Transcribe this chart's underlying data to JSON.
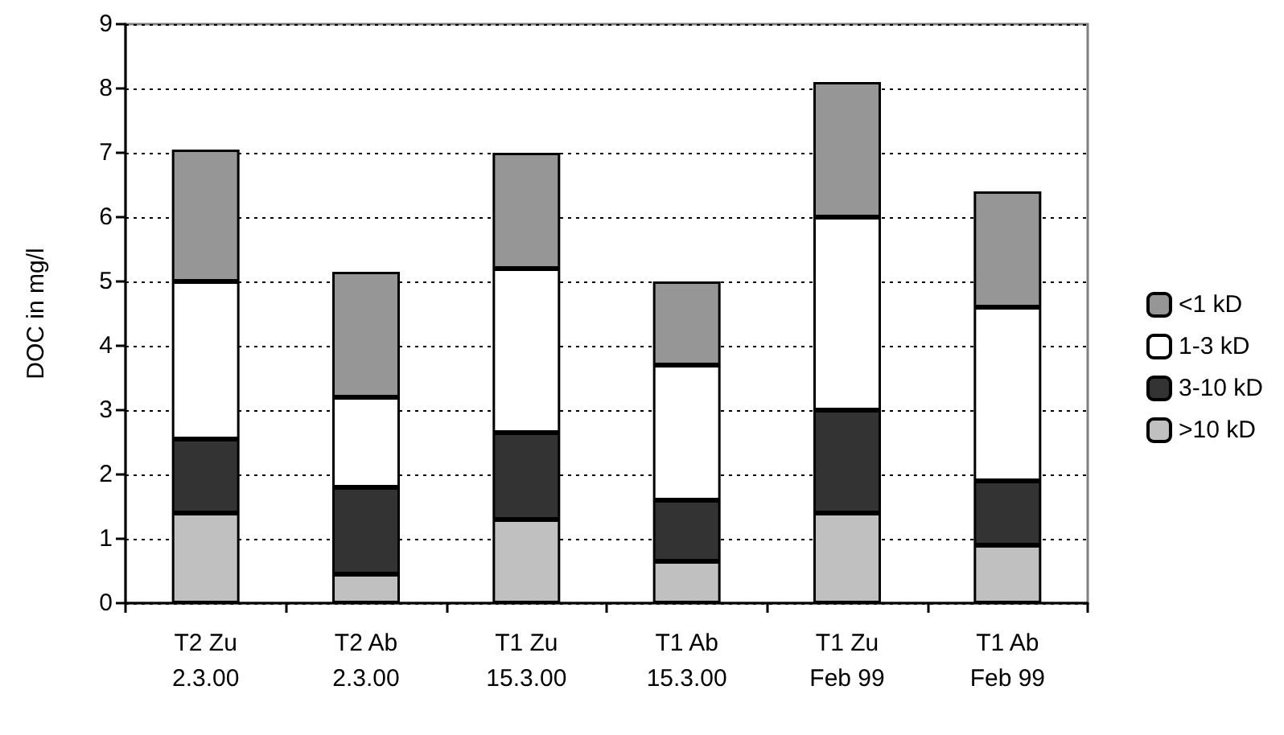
{
  "chart_data": {
    "type": "bar",
    "stacked": true,
    "ylabel": "DOC in mg/l",
    "categories": [
      "T2 Zu\n2.3.00",
      "T2 Ab\n2.3.00",
      "T1 Zu\n15.3.00",
      "T1 Ab\n15.3.00",
      "T1 Zu\nFeb 99",
      "T1 Ab\nFeb 99"
    ],
    "series": [
      {
        "name": ">10 kD",
        "color": "#c0c0c0",
        "values": [
          1.4,
          0.45,
          1.3,
          0.65,
          1.4,
          0.9
        ]
      },
      {
        "name": "3-10 kD",
        "color": "#333333",
        "values": [
          1.15,
          1.35,
          1.35,
          0.95,
          1.6,
          1.0
        ]
      },
      {
        "name": "1-3 kD",
        "color": "#ffffff",
        "values": [
          2.45,
          1.4,
          2.55,
          2.1,
          3.0,
          2.7
        ]
      },
      {
        "name": "<1 kD",
        "color": "#969696",
        "values": [
          2.05,
          1.95,
          1.8,
          1.3,
          2.1,
          1.8
        ]
      }
    ],
    "ylim": [
      0,
      9
    ],
    "yticks": [
      0,
      1,
      2,
      3,
      4,
      5,
      6,
      7,
      8,
      9
    ],
    "grid": "y",
    "legend": "right"
  }
}
